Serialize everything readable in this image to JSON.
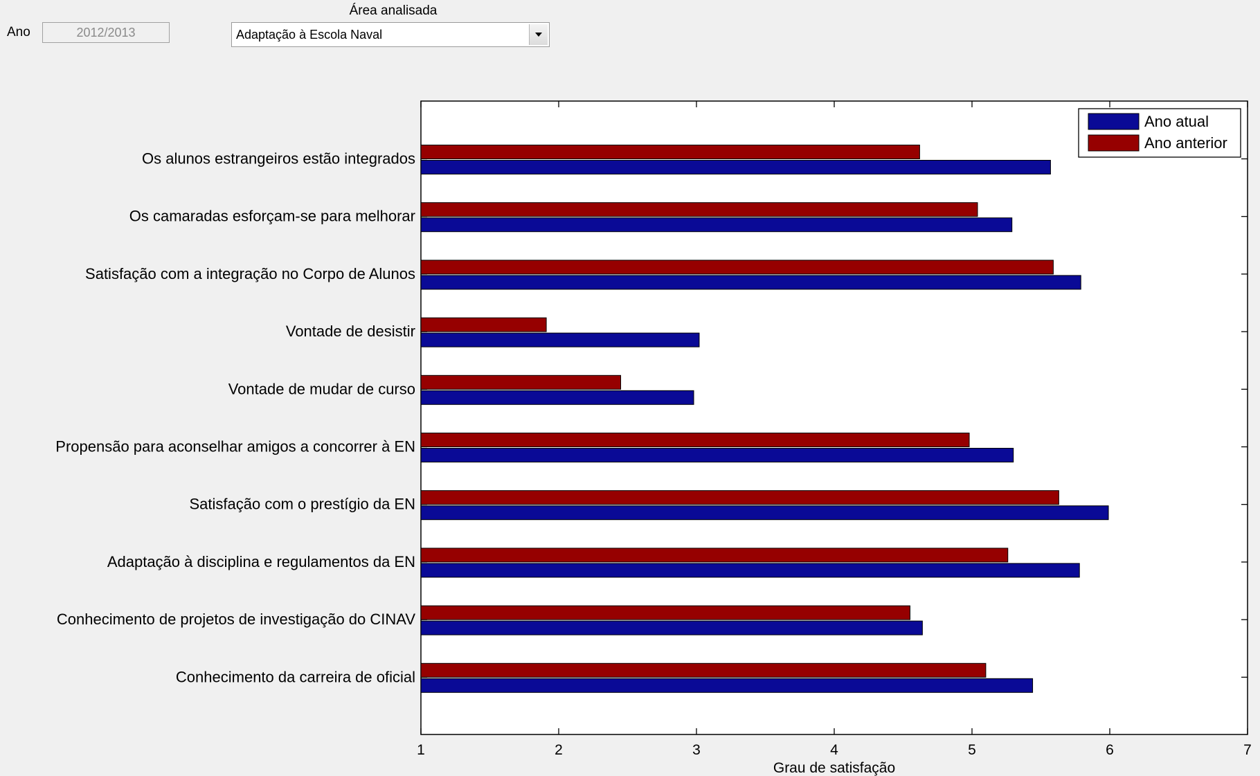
{
  "controls": {
    "year_label": "Ano",
    "year_value": "2012/2013",
    "area_label": "Área analisada",
    "area_selected": "Adaptação à Escola Naval"
  },
  "colors": {
    "current": "#0a0a96",
    "previous": "#960000",
    "plot_background": "#ffffff",
    "page_background": "#f0f0f0"
  },
  "chart_data": {
    "type": "bar",
    "orientation": "horizontal",
    "xlabel": "Grau de satisfação",
    "ylabel": "",
    "xlim": [
      1,
      7
    ],
    "xticks": [
      1,
      2,
      3,
      4,
      5,
      6,
      7
    ],
    "grid": false,
    "legend_position": "top-right",
    "categories": [
      "Os alunos estrangeiros estão integrados",
      "Os camaradas esforçam-se para melhorar",
      "Satisfação com a integração no Corpo de Alunos",
      "Vontade de desistir",
      "Vontade de mudar de curso",
      "Propensão para aconselhar amigos a concorrer à EN",
      "Satisfação com o prestígio da EN",
      "Adaptação à disciplina e regulamentos da EN",
      "Conhecimento de projetos de investigação do CINAV",
      "Conhecimento da carreira de oficial"
    ],
    "series": [
      {
        "name": "Ano atual",
        "color": "#0a0a96",
        "values": [
          5.57,
          5.29,
          5.79,
          3.02,
          2.98,
          5.3,
          5.99,
          5.78,
          4.64,
          5.44
        ]
      },
      {
        "name": "Ano anterior",
        "color": "#960000",
        "values": [
          4.62,
          5.04,
          5.59,
          1.91,
          2.45,
          4.98,
          5.63,
          5.26,
          4.55,
          5.1
        ]
      }
    ]
  }
}
